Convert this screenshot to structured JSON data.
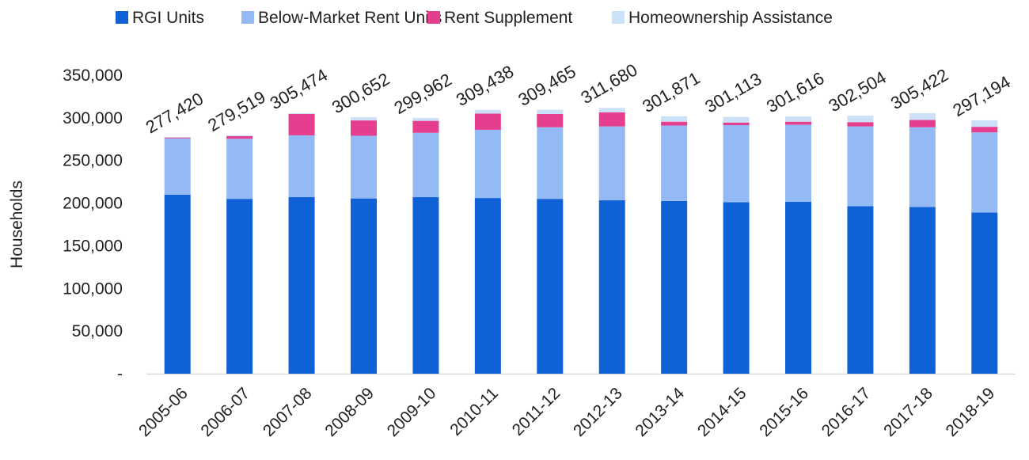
{
  "chart_data": {
    "type": "bar",
    "stacked": true,
    "ylabel": "Households",
    "ylim": [
      0,
      350000
    ],
    "yticks": [
      0,
      50000,
      100000,
      150000,
      200000,
      250000,
      300000,
      350000
    ],
    "ytick_labels": [
      "-",
      "50,000",
      "100,000",
      "150,000",
      "200,000",
      "250,000",
      "300,000",
      "350,000"
    ],
    "grid": false,
    "legend_position": "top",
    "categories": [
      "2005-06",
      "2006-07",
      "2007-08",
      "2008-09",
      "2009-10",
      "2010-11",
      "2011-12",
      "2012-13",
      "2013-14",
      "2014-15",
      "2015-16",
      "2016-17",
      "2017-18",
      "2018-19"
    ],
    "series": [
      {
        "name": "RGI Units",
        "color": "#1060D6",
        "values": [
          210000,
          205000,
          207000,
          205500,
          207000,
          206000,
          205000,
          203500,
          202500,
          201000,
          201500,
          196500,
          195500,
          189000
        ]
      },
      {
        "name": "Below-Market Rent Units",
        "color": "#93BAF5",
        "values": [
          66000,
          70500,
          72500,
          73500,
          75500,
          80000,
          84000,
          86500,
          88500,
          90500,
          90500,
          93500,
          93500,
          94000
        ]
      },
      {
        "name": "Rent Supplement",
        "color": "#E63E8E",
        "values": [
          1000,
          3000,
          25000,
          18000,
          14000,
          19000,
          15500,
          16500,
          4500,
          3000,
          3500,
          5000,
          8500,
          6500
        ]
      },
      {
        "name": "Homeownership Assistance",
        "color": "#CCE0F8",
        "values": [
          420,
          1019,
          974,
          3652,
          3462,
          4438,
          4965,
          5180,
          6371,
          6613,
          6116,
          7504,
          7922,
          7694
        ]
      }
    ],
    "totals": [
      277420,
      279519,
      305474,
      300652,
      299962,
      309438,
      309465,
      311680,
      301871,
      301113,
      301616,
      302504,
      305422,
      297194
    ],
    "total_labels": [
      "277,420",
      "279,519",
      "305,474",
      "300,652",
      "299,962",
      "309,438",
      "309,465",
      "311,680",
      "301,871",
      "301,113",
      "301,616",
      "302,504",
      "305,422",
      "297,194"
    ]
  }
}
